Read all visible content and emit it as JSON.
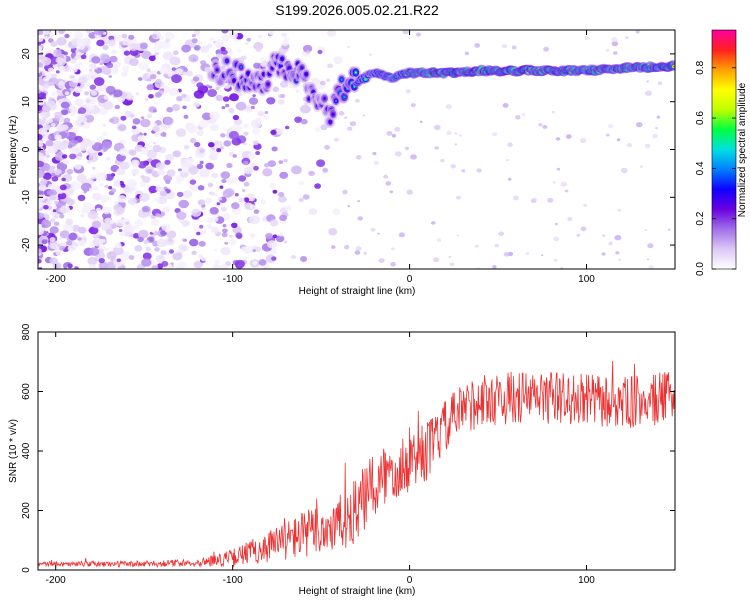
{
  "chart_data": [
    {
      "type": "heatmap",
      "title": "S199.2026.005.02.21.R22",
      "xlabel": "Height of straight line (km)",
      "ylabel": "Frequency (Hz)",
      "xlim": [
        -210,
        150
      ],
      "ylim": [
        -25,
        25
      ],
      "x_ticks": [
        -200,
        -100,
        0,
        100
      ],
      "y_ticks": [
        -20,
        -10,
        0,
        10,
        20
      ],
      "colorbar": {
        "label": "Normalized spectral amplitude",
        "range": [
          0,
          0.95
        ],
        "ticks": [
          0.0,
          0.2,
          0.4,
          0.6,
          0.8
        ],
        "colormap": [
          "#ffffff",
          "#dcc8f5",
          "#a070e8",
          "#6a00e0",
          "#1000ff",
          "#0080ff",
          "#00e0e0",
          "#00ff40",
          "#c0ff00",
          "#ffff00",
          "#ffa000",
          "#ff2020",
          "#ff00a0"
        ]
      },
      "signal_track": {
        "description_points_x": [
          -110,
          -95,
          -85,
          -75,
          -65,
          -55,
          -45,
          -38,
          -30,
          -20,
          -10,
          0,
          20,
          40,
          60,
          80,
          100,
          120,
          150
        ],
        "frequency_hz": [
          17,
          15,
          13,
          18,
          17,
          12,
          8,
          13,
          14,
          16,
          15,
          16,
          16,
          16.5,
          16.5,
          16.5,
          16.5,
          17,
          17.5
        ],
        "peak_amplitude": [
          0.3,
          0.35,
          0.3,
          0.3,
          0.35,
          0.3,
          0.3,
          0.45,
          0.55,
          0.6,
          0.65,
          0.75,
          0.85,
          0.85,
          0.85,
          0.85,
          0.8,
          0.8,
          0.85
        ]
      }
    },
    {
      "type": "line",
      "xlabel": "Height of straight line (km)",
      "ylabel": "SNR (10 * v/v)",
      "xlim": [
        -210,
        150
      ],
      "ylim": [
        0,
        800
      ],
      "x_ticks": [
        -200,
        -100,
        0,
        100
      ],
      "y_ticks": [
        0,
        200,
        400,
        600,
        800
      ],
      "color": "#ee3030",
      "trend": {
        "x": [
          -210,
          -150,
          -120,
          -100,
          -80,
          -60,
          -40,
          -30,
          -20,
          -10,
          0,
          10,
          20,
          30,
          40,
          60,
          80,
          100,
          120,
          150
        ],
        "y": [
          20,
          20,
          25,
          40,
          80,
          120,
          150,
          200,
          280,
          340,
          370,
          400,
          480,
          540,
          570,
          580,
          580,
          570,
          560,
          580
        ]
      },
      "noise_amplitude": {
        "x": [
          -210,
          -120,
          -100,
          -60,
          -20,
          0,
          20,
          150
        ],
        "y": [
          8,
          12,
          30,
          80,
          120,
          110,
          90,
          90
        ]
      }
    }
  ]
}
